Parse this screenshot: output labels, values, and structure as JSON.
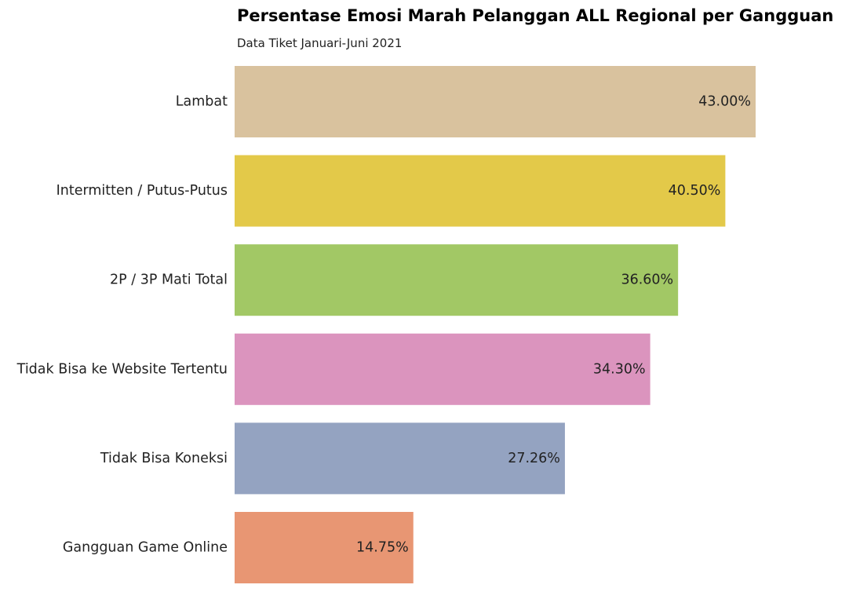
{
  "chart_data": {
    "type": "bar",
    "orientation": "horizontal",
    "title": "Persentase Emosi Marah Pelanggan ALL Regional per Gangguan",
    "subtitle": "Data Tiket Januari-Juni 2021",
    "xlabel": "",
    "ylabel": "",
    "categories": [
      "Lambat",
      "Intermitten / Putus-Putus",
      "2P / 3P Mati Total",
      "Tidak Bisa ke Website Tertentu",
      "Tidak Bisa Koneksi",
      "Gangguan Game Online"
    ],
    "values": [
      43.0,
      40.5,
      36.6,
      34.3,
      27.26,
      14.75
    ],
    "value_labels": [
      "43.00%",
      "40.50%",
      "36.60%",
      "34.30%",
      "27.26%",
      "14.75%"
    ],
    "colors": [
      "#d9c29e",
      "#e3c949",
      "#a2c865",
      "#db94be",
      "#94a3c1",
      "#e89673"
    ],
    "xlim": [
      0,
      43
    ],
    "grid": false,
    "legend": "none"
  }
}
